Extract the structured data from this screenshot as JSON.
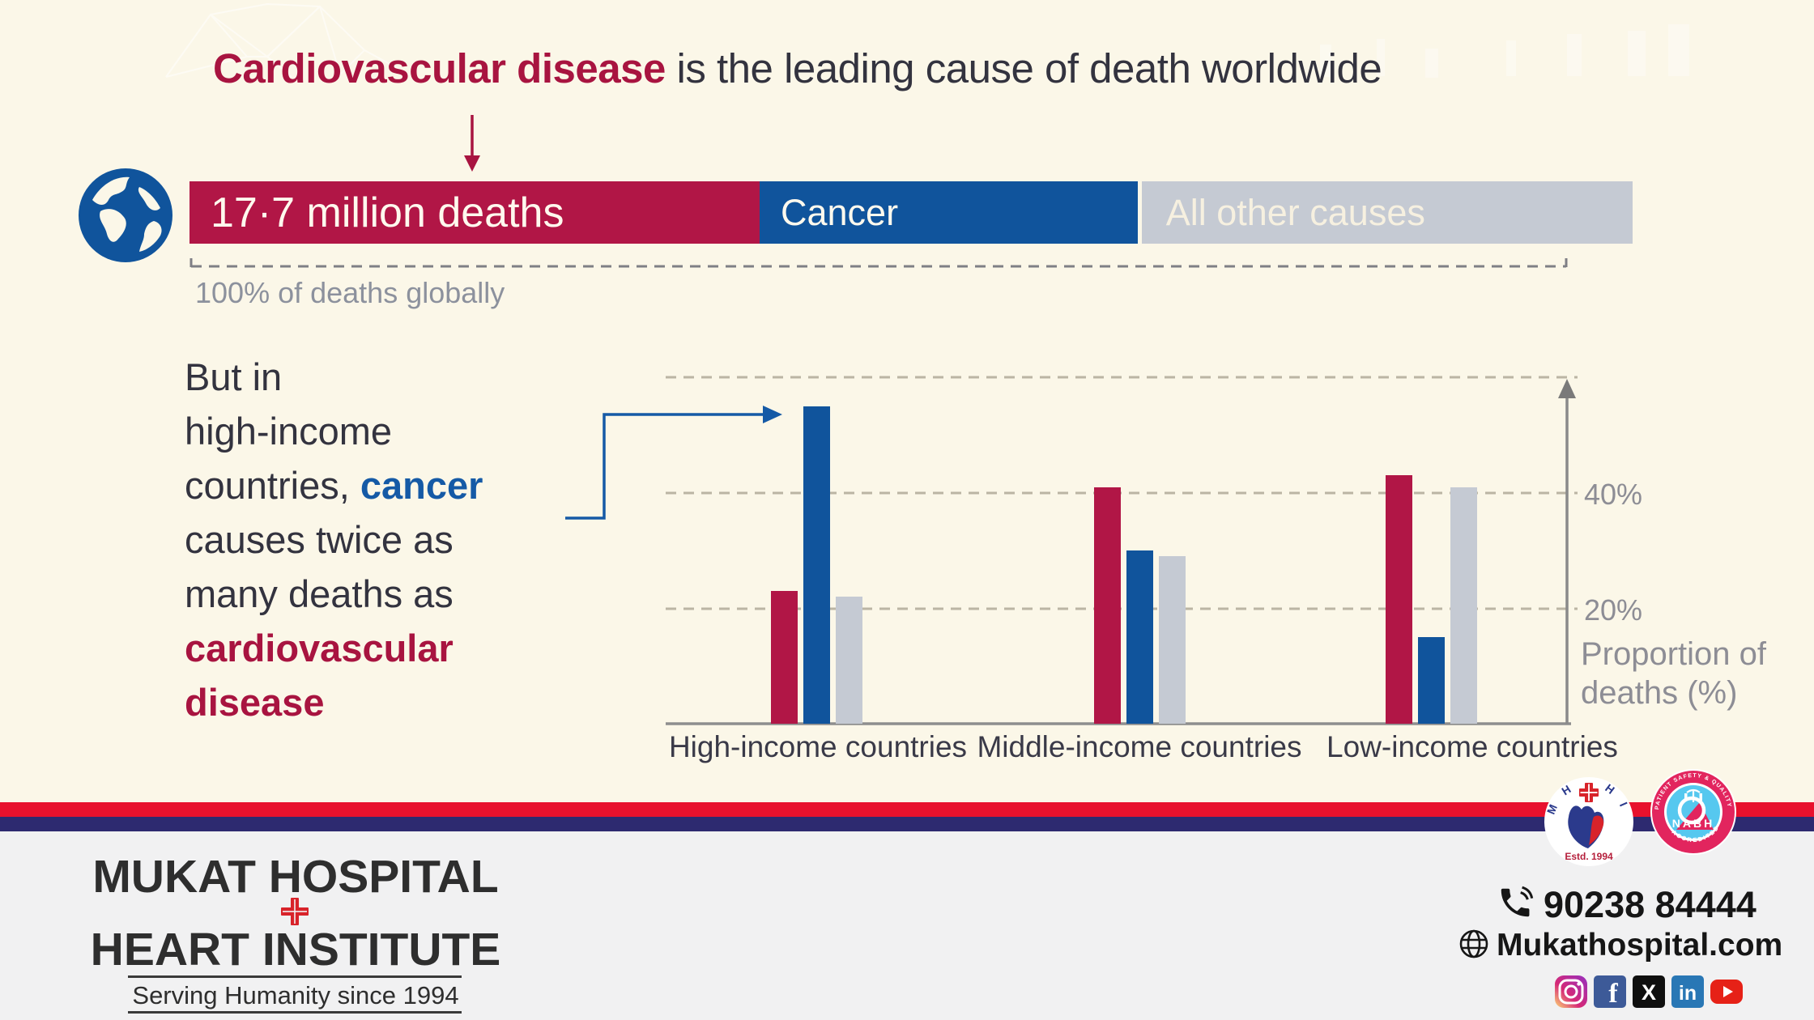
{
  "colors": {
    "crimson": "#B11646",
    "blue": "#10549C",
    "bar_gray": "#C5CAD3",
    "cream_bg": "#FBF7E8",
    "text_dark": "#33333F",
    "text_gray": "#8D8D95",
    "footer_red": "#E8112D",
    "footer_navy": "#2D2A70",
    "footer_bg": "#F1F1F2"
  },
  "title": {
    "highlight": "Cardiovascular disease",
    "rest": " is the leading cause of death worldwide"
  },
  "global_bar": {
    "segments": [
      {
        "label": "17·7 million deaths",
        "share": 40,
        "color": "#B11646"
      },
      {
        "label": "Cancer",
        "share": 26,
        "color": "#10549C"
      },
      {
        "label": "All other causes",
        "share": 34,
        "color": "#C5CAD3"
      }
    ],
    "caption": "100% of deaths globally"
  },
  "note": {
    "line1": "But in",
    "line2": "high-income",
    "line3_pre": "countries, ",
    "line3_highlight": "cancer",
    "line4": "causes twice as",
    "line5": "many deaths as",
    "line6": "cardiovascular",
    "line7": "disease"
  },
  "chart_data": {
    "type": "bar",
    "categories": [
      "High-income countries",
      "Middle-income countries",
      "Low-income countries"
    ],
    "series": [
      {
        "name": "Cardiovascular disease",
        "color": "#B11646",
        "values": [
          23,
          41,
          43
        ]
      },
      {
        "name": "Cancer",
        "color": "#10549C",
        "values": [
          55,
          30,
          15
        ]
      },
      {
        "name": "All other causes",
        "color": "#C5CAD3",
        "values": [
          22,
          29,
          41
        ]
      }
    ],
    "ylabel": "Proportion of deaths (%)",
    "ylabel_lines": [
      "Proportion of",
      "deaths (%)"
    ],
    "yticks": [
      {
        "value": 20,
        "label": "20%"
      },
      {
        "value": 40,
        "label": "40%"
      }
    ],
    "ylim": [
      0,
      60
    ],
    "gridlines": [
      20,
      40,
      60
    ],
    "grid_style": "dashed",
    "legend": "none"
  },
  "footer": {
    "name_line1": "MUKAT HOSPITAL",
    "name_line2": "HEART INSTITUTE",
    "tagline": "Serving Humanity since 1994",
    "phone": "90238 84444",
    "website": "Mukathospital.com",
    "mhhi_logo": {
      "arc_left": "M H",
      "arc_right": "H I",
      "estd": "Estd. 1994"
    },
    "nabh_logo": {
      "ring_top": "PATIENT SAFETY & QUALITY OF CARE",
      "name": "NABH",
      "ring_bottom": "ACCREDITED"
    },
    "social": [
      {
        "name": "instagram",
        "glyph": ""
      },
      {
        "name": "facebook",
        "glyph": "f"
      },
      {
        "name": "x",
        "glyph": "X"
      },
      {
        "name": "linkedin",
        "glyph": "in"
      },
      {
        "name": "youtube",
        "glyph": ""
      }
    ]
  }
}
